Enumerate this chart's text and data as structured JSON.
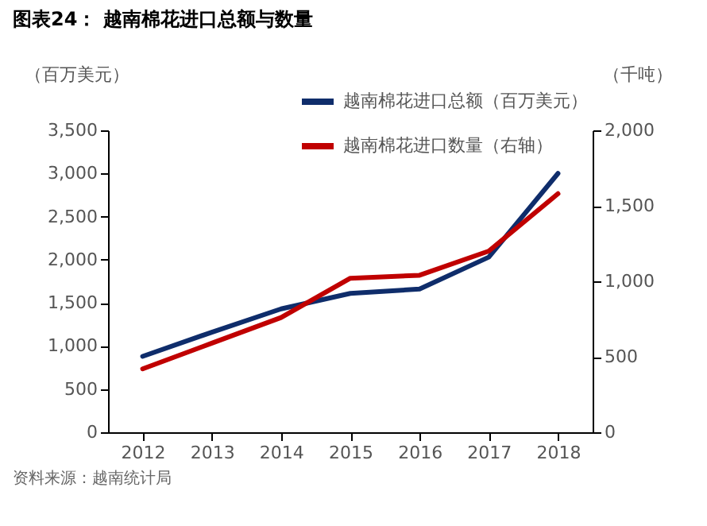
{
  "chart_data": {
    "type": "line",
    "title": "图表24：  越南棉花进口总额与数量",
    "ylabel": "（百万美元）",
    "y2label": "（千吨）",
    "categories": [
      "2012",
      "2013",
      "2014",
      "2015",
      "2016",
      "2017",
      "2018"
    ],
    "series": [
      {
        "name": "越南棉花进口总额（百万美元）",
        "color": "#0f2d6b",
        "values": [
          880,
          1160,
          1430,
          1610,
          1660,
          2030,
          3000
        ]
      },
      {
        "name": "越南棉花进口数量（右轴）",
        "color": "#c00000",
        "axis": "y2",
        "values": [
          420,
          590,
          760,
          1020,
          1040,
          1200,
          1580
        ]
      }
    ],
    "ylim": [
      0,
      3500
    ],
    "yticks": [
      0,
      {
        "value": 500,
        "label": "500"
      },
      {
        "value": 1000,
        "label": "1,000"
      },
      {
        "value": 1500,
        "label": "1,500"
      },
      {
        "value": 2000,
        "label": "2,000"
      },
      {
        "value": 2500,
        "label": "2,500"
      },
      {
        "value": 3000,
        "label": "3,000"
      },
      {
        "value": 3500,
        "label": "3,500"
      }
    ],
    "y2lim": [
      0,
      2000
    ],
    "y2ticks": [
      0,
      {
        "value": 500,
        "label": "500"
      },
      {
        "value": 1000,
        "label": "1,000"
      },
      {
        "value": 1500,
        "label": "1,500"
      },
      {
        "value": 2000,
        "label": "2,000"
      }
    ],
    "grid": false,
    "legend": "top",
    "marker": "none",
    "line_style": "solid",
    "annotations": [
      "资料来源：越南统计局"
    ]
  }
}
